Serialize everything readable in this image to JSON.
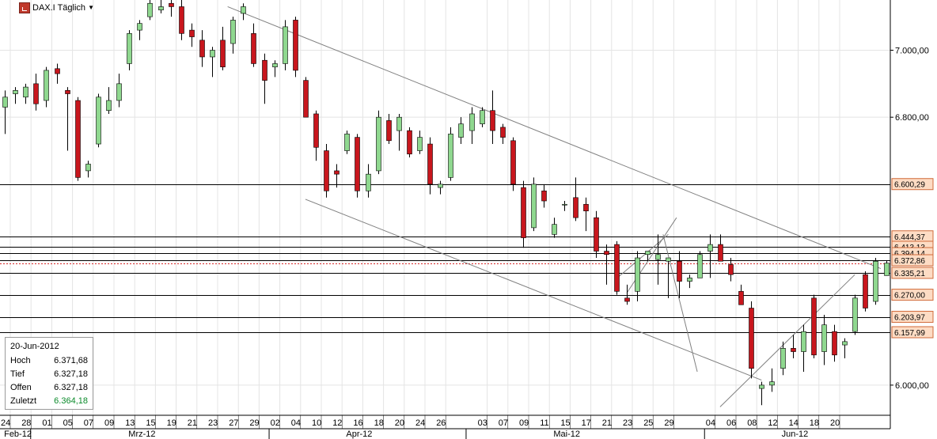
{
  "header": {
    "symbol_label": "DAX.I Täglich",
    "icon": "chart-icon",
    "dropdown_icon": "chevron-down-icon"
  },
  "info_box": {
    "date": "20-Jun-2012",
    "rows": [
      {
        "label": "Hoch",
        "value": "6.371,68"
      },
      {
        "label": "Tief",
        "value": "6.327,18"
      },
      {
        "label": "Offen",
        "value": "6.327,18"
      },
      {
        "label": "Zuletzt",
        "value": "6.364,18"
      }
    ]
  },
  "colors": {
    "up": "#8fd88f",
    "down": "#c8161d",
    "wick": "#000000",
    "grid": "#e4e4e4",
    "label_bg": "#fddcc4",
    "label_border": "#d06a3a",
    "current_line": "#d62728",
    "last_value": "#0a8a2a"
  },
  "chart_data": {
    "type": "candlestick",
    "instrument": "DAX.I",
    "interval": "Täglich",
    "ylim": [
      5910,
      7150
    ],
    "y_ticks": [
      {
        "value": 7000,
        "label": "7.000,00"
      },
      {
        "value": 6800,
        "label": "6.800,00"
      },
      {
        "value": 6000,
        "label": "6.000,00"
      }
    ],
    "x_day_labels": [
      "24",
      "28",
      "01",
      "05",
      "07",
      "09",
      "13",
      "15",
      "19",
      "21",
      "23",
      "27",
      "29",
      "02",
      "04",
      "10",
      "12",
      "16",
      "18",
      "20",
      "24",
      "26",
      "03",
      "07",
      "09",
      "11",
      "15",
      "17",
      "21",
      "23",
      "25",
      "29",
      "04",
      "06",
      "08",
      "12",
      "14",
      "18",
      "20"
    ],
    "x_day_label_slots": [
      0,
      2,
      4,
      6,
      8,
      10,
      12,
      14,
      16,
      18,
      20,
      22,
      24,
      26,
      28,
      30,
      32,
      34,
      36,
      38,
      40,
      42,
      46,
      48,
      50,
      52,
      54,
      56,
      58,
      60,
      62,
      64,
      68,
      70,
      72,
      74,
      76,
      78,
      80
    ],
    "x_months": [
      {
        "label": "Feb-12",
        "slot": 1
      },
      {
        "label": "Mrz-12",
        "slot": 13
      },
      {
        "label": "Apr-12",
        "slot": 34
      },
      {
        "label": "Mai-12",
        "slot": 54
      },
      {
        "label": "Jun-12",
        "slot": 76
      }
    ],
    "month_boundary_slots": [
      2.5,
      25.5,
      44.5,
      67.5
    ],
    "grid": true,
    "horizontal_levels": [
      {
        "value": 6600.29,
        "label": "6.600,29",
        "color": "#000000"
      },
      {
        "value": 6444.37,
        "label": "6.444,37",
        "color": "#000000"
      },
      {
        "value": 6413.13,
        "label": "6.413,13",
        "color": "#000000"
      },
      {
        "value": 6394.14,
        "label": "6.394,14",
        "color": "#000000"
      },
      {
        "value": 6372.86,
        "label": "6.372,86",
        "color": "#000000"
      },
      {
        "value": 6364.18,
        "label": "",
        "color": "#d62728",
        "dashed": true
      },
      {
        "value": 6335.21,
        "label": "6.335,21",
        "color": "#000000"
      },
      {
        "value": 6270.0,
        "label": "6.270,00",
        "color": "#000000"
      },
      {
        "value": 6203.97,
        "label": "6.203,97",
        "color": "#000000"
      },
      {
        "value": 6157.99,
        "label": "6.157,99",
        "color": "#000000"
      }
    ],
    "trendlines": [
      {
        "from": [
          21.5,
          7130
        ],
        "to": [
          84.5,
          6348
        ]
      },
      {
        "from": [
          29,
          6555
        ],
        "to": [
          73,
          6015
        ]
      },
      {
        "from": [
          69,
          5935
        ],
        "to": [
          82,
          6330
        ]
      },
      {
        "from": [
          60,
          6275
        ],
        "to": [
          64.8,
          6500
        ]
      },
      {
        "from": [
          59,
          6318
        ],
        "to": [
          64,
          6450
        ]
      },
      {
        "from": [
          63.5,
          6450
        ],
        "to": [
          66.8,
          6040
        ]
      }
    ],
    "candles": [
      {
        "x": 0,
        "o": 6830,
        "h": 6880,
        "l": 6750,
        "c": 6860
      },
      {
        "x": 1,
        "o": 6870,
        "h": 6890,
        "l": 6840,
        "c": 6880
      },
      {
        "x": 2,
        "o": 6860,
        "h": 6900,
        "l": 6840,
        "c": 6890
      },
      {
        "x": 3,
        "o": 6900,
        "h": 6930,
        "l": 6820,
        "c": 6840
      },
      {
        "x": 4,
        "o": 6850,
        "h": 6950,
        "l": 6830,
        "c": 6940
      },
      {
        "x": 5,
        "o": 6945,
        "h": 6960,
        "l": 6900,
        "c": 6930
      },
      {
        "x": 6,
        "o": 6880,
        "h": 6890,
        "l": 6700,
        "c": 6870
      },
      {
        "x": 7,
        "o": 6850,
        "h": 6860,
        "l": 6610,
        "c": 6620
      },
      {
        "x": 8,
        "o": 6640,
        "h": 6670,
        "l": 6620,
        "c": 6660
      },
      {
        "x": 9,
        "o": 6720,
        "h": 6870,
        "l": 6710,
        "c": 6860
      },
      {
        "x": 10,
        "o": 6820,
        "h": 6890,
        "l": 6810,
        "c": 6850
      },
      {
        "x": 11,
        "o": 6850,
        "h": 6930,
        "l": 6830,
        "c": 6900
      },
      {
        "x": 12,
        "o": 6960,
        "h": 7060,
        "l": 6940,
        "c": 7050
      },
      {
        "x": 13,
        "o": 7060,
        "h": 7090,
        "l": 7030,
        "c": 7080
      },
      {
        "x": 14,
        "o": 7100,
        "h": 7150,
        "l": 7090,
        "c": 7140
      },
      {
        "x": 15,
        "o": 7120,
        "h": 7150,
        "l": 7110,
        "c": 7130
      },
      {
        "x": 16,
        "o": 7140,
        "h": 7150,
        "l": 7100,
        "c": 7130
      },
      {
        "x": 17,
        "o": 7130,
        "h": 7150,
        "l": 7030,
        "c": 7050
      },
      {
        "x": 18,
        "o": 7060,
        "h": 7080,
        "l": 7010,
        "c": 7040
      },
      {
        "x": 19,
        "o": 7030,
        "h": 7060,
        "l": 6950,
        "c": 6980
      },
      {
        "x": 20,
        "o": 6980,
        "h": 7010,
        "l": 6920,
        "c": 7000
      },
      {
        "x": 21,
        "o": 7030,
        "h": 7070,
        "l": 6940,
        "c": 6950
      },
      {
        "x": 22,
        "o": 7020,
        "h": 7100,
        "l": 6990,
        "c": 7090
      },
      {
        "x": 23,
        "o": 7110,
        "h": 7140,
        "l": 7090,
        "c": 7130
      },
      {
        "x": 24,
        "o": 7050,
        "h": 7080,
        "l": 6950,
        "c": 6960
      },
      {
        "x": 25,
        "o": 6970,
        "h": 6990,
        "l": 6840,
        "c": 6910
      },
      {
        "x": 26,
        "o": 6950,
        "h": 6970,
        "l": 6920,
        "c": 6960
      },
      {
        "x": 27,
        "o": 6960,
        "h": 7090,
        "l": 6940,
        "c": 7070
      },
      {
        "x": 28,
        "o": 7090,
        "h": 7100,
        "l": 6920,
        "c": 6940
      },
      {
        "x": 29,
        "o": 6910,
        "h": 6920,
        "l": 6800,
        "c": 6800
      },
      {
        "x": 30,
        "o": 6810,
        "h": 6820,
        "l": 6670,
        "c": 6710
      },
      {
        "x": 31,
        "o": 6700,
        "h": 6720,
        "l": 6560,
        "c": 6580
      },
      {
        "x": 32,
        "o": 6640,
        "h": 6660,
        "l": 6590,
        "c": 6630
      },
      {
        "x": 33,
        "o": 6700,
        "h": 6760,
        "l": 6690,
        "c": 6750
      },
      {
        "x": 34,
        "o": 6740,
        "h": 6750,
        "l": 6560,
        "c": 6580
      },
      {
        "x": 35,
        "o": 6580,
        "h": 6660,
        "l": 6560,
        "c": 6630
      },
      {
        "x": 36,
        "o": 6640,
        "h": 6820,
        "l": 6630,
        "c": 6800
      },
      {
        "x": 37,
        "o": 6790,
        "h": 6810,
        "l": 6720,
        "c": 6730
      },
      {
        "x": 38,
        "o": 6760,
        "h": 6810,
        "l": 6700,
        "c": 6800
      },
      {
        "x": 39,
        "o": 6760,
        "h": 6770,
        "l": 6680,
        "c": 6690
      },
      {
        "x": 40,
        "o": 6700,
        "h": 6760,
        "l": 6690,
        "c": 6740
      },
      {
        "x": 41,
        "o": 6720,
        "h": 6740,
        "l": 6570,
        "c": 6600
      },
      {
        "x": 42,
        "o": 6590,
        "h": 6610,
        "l": 6570,
        "c": 6600
      },
      {
        "x": 43,
        "o": 6620,
        "h": 6770,
        "l": 6610,
        "c": 6750
      },
      {
        "x": 44,
        "o": 6740,
        "h": 6800,
        "l": 6720,
        "c": 6780
      },
      {
        "x": 45,
        "o": 6760,
        "h": 6830,
        "l": 6720,
        "c": 6810
      },
      {
        "x": 46,
        "o": 6780,
        "h": 6830,
        "l": 6770,
        "c": 6820
      },
      {
        "x": 47,
        "o": 6820,
        "h": 6880,
        "l": 6720,
        "c": 6760
      },
      {
        "x": 48,
        "o": 6770,
        "h": 6780,
        "l": 6720,
        "c": 6740
      },
      {
        "x": 49,
        "o": 6730,
        "h": 6740,
        "l": 6580,
        "c": 6600
      },
      {
        "x": 50,
        "o": 6590,
        "h": 6610,
        "l": 6410,
        "c": 6440
      },
      {
        "x": 51,
        "o": 6470,
        "h": 6620,
        "l": 6460,
        "c": 6600
      },
      {
        "x": 52,
        "o": 6580,
        "h": 6600,
        "l": 6530,
        "c": 6550
      },
      {
        "x": 53,
        "o": 6450,
        "h": 6500,
        "l": 6440,
        "c": 6480
      },
      {
        "x": 54,
        "o": 6540,
        "h": 6550,
        "l": 6520,
        "c": 6540
      },
      {
        "x": 55,
        "o": 6560,
        "h": 6620,
        "l": 6490,
        "c": 6500
      },
      {
        "x": 56,
        "o": 6540,
        "h": 6560,
        "l": 6460,
        "c": 6520
      },
      {
        "x": 57,
        "o": 6500,
        "h": 6520,
        "l": 6380,
        "c": 6400
      },
      {
        "x": 58,
        "o": 6400,
        "h": 6420,
        "l": 6300,
        "c": 6390
      },
      {
        "x": 59,
        "o": 6420,
        "h": 6430,
        "l": 6270,
        "c": 6280
      },
      {
        "x": 60,
        "o": 6260,
        "h": 6300,
        "l": 6240,
        "c": 6250
      },
      {
        "x": 61,
        "o": 6280,
        "h": 6400,
        "l": 6250,
        "c": 6380
      },
      {
        "x": 62,
        "o": 6390,
        "h": 6400,
        "l": 6370,
        "c": 6400
      },
      {
        "x": 63,
        "o": 6375,
        "h": 6450,
        "l": 6300,
        "c": 6390
      },
      {
        "x": 64,
        "o": 6370,
        "h": 6380,
        "l": 6260,
        "c": 6380
      },
      {
        "x": 65,
        "o": 6370,
        "h": 6400,
        "l": 6260,
        "c": 6310
      },
      {
        "x": 66,
        "o": 6310,
        "h": 6330,
        "l": 6290,
        "c": 6320
      },
      {
        "x": 67,
        "o": 6320,
        "h": 6400,
        "l": 6320,
        "c": 6390
      },
      {
        "x": 68,
        "o": 6400,
        "h": 6450,
        "l": 6320,
        "c": 6420
      },
      {
        "x": 69,
        "o": 6420,
        "h": 6450,
        "l": 6380,
        "c": 6370
      },
      {
        "x": 70,
        "o": 6360,
        "h": 6380,
        "l": 6310,
        "c": 6330
      },
      {
        "x": 71,
        "o": 6280,
        "h": 6300,
        "l": 6240,
        "c": 6240
      },
      {
        "x": 72,
        "o": 6230,
        "h": 6250,
        "l": 6020,
        "c": 6050
      },
      {
        "x": 73,
        "o": 5990,
        "h": 6010,
        "l": 5940,
        "c": 6000
      },
      {
        "x": 74,
        "o": 6000,
        "h": 6050,
        "l": 5980,
        "c": 6010
      },
      {
        "x": 75,
        "o": 6050,
        "h": 6130,
        "l": 6030,
        "c": 6110
      },
      {
        "x": 76,
        "o": 6110,
        "h": 6150,
        "l": 6080,
        "c": 6100
      },
      {
        "x": 77,
        "o": 6100,
        "h": 6180,
        "l": 6040,
        "c": 6160
      },
      {
        "x": 78,
        "o": 6260,
        "h": 6270,
        "l": 6080,
        "c": 6090
      },
      {
        "x": 79,
        "o": 6100,
        "h": 6210,
        "l": 6060,
        "c": 6180
      },
      {
        "x": 80,
        "o": 6160,
        "h": 6180,
        "l": 6070,
        "c": 6090
      },
      {
        "x": 81,
        "o": 6120,
        "h": 6140,
        "l": 6080,
        "c": 6130
      },
      {
        "x": 82,
        "o": 6160,
        "h": 6270,
        "l": 6150,
        "c": 6260
      },
      {
        "x": 83,
        "o": 6330,
        "h": 6340,
        "l": 6220,
        "c": 6230
      },
      {
        "x": 84,
        "o": 6250,
        "h": 6380,
        "l": 6240,
        "c": 6370
      },
      {
        "x": 85,
        "o": 6327.18,
        "h": 6371.68,
        "l": 6327.18,
        "c": 6364.18
      }
    ]
  }
}
